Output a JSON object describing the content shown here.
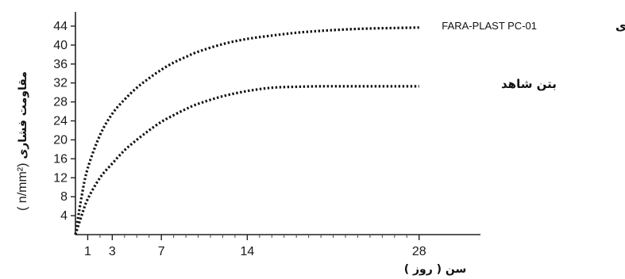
{
  "chart_data": {
    "type": "line",
    "ylabel": "مقاومت فشاری",
    "ylabel_unit": "( n/mm²)",
    "xlabel": "سن ( روز )",
    "x_ticks": [
      1,
      3,
      7,
      14,
      28
    ],
    "y_ticks": [
      4,
      8,
      12,
      16,
      20,
      24,
      28,
      32,
      36,
      40,
      44
    ],
    "xlim": [
      0,
      33
    ],
    "ylim": [
      0,
      47
    ],
    "line_style": "dotted",
    "grid": false,
    "series": [
      {
        "name": "بتن حاوی",
        "product_label": "FARA-PLAST PC-01",
        "x": [
          0,
          0.5,
          1,
          2,
          3,
          4,
          5,
          6,
          7,
          8,
          9,
          10,
          12,
          14,
          16,
          18,
          20,
          22,
          24,
          26,
          28
        ],
        "y": [
          0,
          8,
          14,
          21,
          25.5,
          28.5,
          31,
          33,
          34.8,
          36.3,
          37.5,
          38.6,
          40.2,
          41.3,
          42,
          42.6,
          43,
          43.3,
          43.5,
          43.6,
          43.7
        ]
      },
      {
        "name": "بتن شاهد",
        "x": [
          0,
          0.5,
          1,
          2,
          3,
          4,
          5,
          6,
          7,
          8,
          9,
          10,
          12,
          14,
          16,
          18,
          20,
          22,
          24,
          26,
          28
        ],
        "y": [
          0,
          4,
          7.5,
          12,
          15,
          17.8,
          20,
          22,
          23.8,
          25.2,
          26.5,
          27.6,
          29.2,
          30.3,
          31,
          31.2,
          31.3,
          31.3,
          31.3,
          31.3,
          31.3
        ]
      }
    ]
  }
}
